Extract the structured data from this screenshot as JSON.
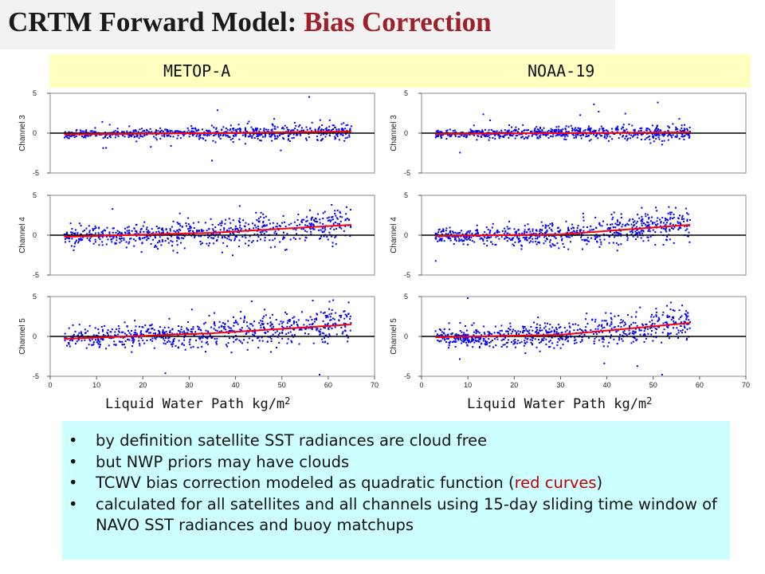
{
  "title": {
    "main": "CRTM Forward Model:",
    "accent": "Bias Correction"
  },
  "labels": {
    "left": "METOP-A",
    "right": "NOAA-19"
  },
  "xaxis_title": {
    "text": "Liquid Water Path  kg/m",
    "superscript": "2"
  },
  "bullets": [
    {
      "text": "by definition satellite SST radiances are cloud free"
    },
    {
      "text": "but NWP priors may have clouds"
    },
    {
      "pre": "TCWV bias correction modeled as quadratic function (",
      "red": "red curves",
      "post": ")"
    },
    {
      "text": "calculated for all satellites and all channels using 15-day sliding time window of NAVO SST radiances and buoy matchups"
    }
  ],
  "bullet_symbol": "•",
  "colors": {
    "title_accent": "#a0202a",
    "points": "#0000ff",
    "fit_curve": "#ff0000",
    "label_bar": "#ffffc0",
    "bullet_box": "#ccffff"
  },
  "chart_data": [
    {
      "type": "scatter",
      "satellite": "METOP-A",
      "ylabel": "Channel 3",
      "xlim": [
        0,
        70
      ],
      "ylim": [
        -5,
        5
      ],
      "yticks": [
        -5,
        0,
        5
      ],
      "xticks": [
        0,
        10,
        20,
        30,
        40,
        50,
        60,
        70
      ],
      "x_range": [
        3,
        65
      ],
      "fit": [
        [
          3,
          -0.15
        ],
        [
          35,
          0.0
        ],
        [
          65,
          0.2
        ]
      ],
      "spread": 0.5
    },
    {
      "type": "scatter",
      "satellite": "METOP-A",
      "ylabel": "Channel 4",
      "xlim": [
        0,
        70
      ],
      "ylim": [
        -5,
        5
      ],
      "yticks": [
        -5,
        0,
        5
      ],
      "xticks": [
        0,
        10,
        20,
        30,
        40,
        50,
        60,
        70
      ],
      "x_range": [
        3,
        65
      ],
      "fit": [
        [
          3,
          -0.2
        ],
        [
          35,
          0.3
        ],
        [
          65,
          1.3
        ]
      ],
      "spread": 1.1
    },
    {
      "type": "scatter",
      "satellite": "METOP-A",
      "ylabel": "Channel 5",
      "xlim": [
        0,
        70
      ],
      "ylim": [
        -5,
        5
      ],
      "yticks": [
        -5,
        0,
        5
      ],
      "xticks": [
        0,
        10,
        20,
        30,
        40,
        50,
        60,
        70
      ],
      "x_range": [
        3,
        65
      ],
      "fit": [
        [
          3,
          -0.3
        ],
        [
          35,
          0.4
        ],
        [
          65,
          1.5
        ]
      ],
      "spread": 1.2
    },
    {
      "type": "scatter",
      "satellite": "NOAA-19",
      "ylabel": "Channel 3",
      "xlim": [
        0,
        70
      ],
      "ylim": [
        -5,
        5
      ],
      "yticks": [
        -5,
        0,
        5
      ],
      "xticks": [
        0,
        10,
        20,
        30,
        40,
        50,
        60,
        70
      ],
      "x_range": [
        3,
        58
      ],
      "fit": [
        [
          3,
          -0.1
        ],
        [
          30,
          0.0
        ],
        [
          58,
          0.1
        ]
      ],
      "spread": 0.5
    },
    {
      "type": "scatter",
      "satellite": "NOAA-19",
      "ylabel": "Channel 4",
      "xlim": [
        0,
        70
      ],
      "ylim": [
        -5,
        5
      ],
      "yticks": [
        -5,
        0,
        5
      ],
      "xticks": [
        0,
        10,
        20,
        30,
        40,
        50,
        60,
        70
      ],
      "x_range": [
        3,
        58
      ],
      "fit": [
        [
          3,
          -0.1
        ],
        [
          30,
          0.1
        ],
        [
          58,
          1.3
        ]
      ],
      "spread": 1.0
    },
    {
      "type": "scatter",
      "satellite": "NOAA-19",
      "ylabel": "Channel 5",
      "xlim": [
        0,
        70
      ],
      "ylim": [
        -5,
        5
      ],
      "yticks": [
        -5,
        0,
        5
      ],
      "xticks": [
        0,
        10,
        20,
        30,
        40,
        50,
        60,
        70
      ],
      "x_range": [
        3,
        58
      ],
      "fit": [
        [
          3,
          -0.1
        ],
        [
          30,
          0.2
        ],
        [
          58,
          1.7
        ]
      ],
      "spread": 1.1
    }
  ]
}
